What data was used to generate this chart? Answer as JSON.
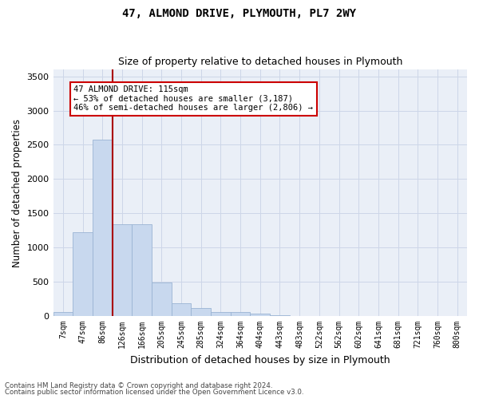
{
  "title": "47, ALMOND DRIVE, PLYMOUTH, PL7 2WY",
  "subtitle": "Size of property relative to detached houses in Plymouth",
  "xlabel": "Distribution of detached houses by size in Plymouth",
  "ylabel": "Number of detached properties",
  "bar_color": "#c8d8ee",
  "bar_edge_color": "#9ab4d4",
  "categories": [
    "7sqm",
    "47sqm",
    "86sqm",
    "126sqm",
    "166sqm",
    "205sqm",
    "245sqm",
    "285sqm",
    "324sqm",
    "364sqm",
    "404sqm",
    "443sqm",
    "483sqm",
    "522sqm",
    "562sqm",
    "602sqm",
    "641sqm",
    "681sqm",
    "721sqm",
    "760sqm",
    "800sqm"
  ],
  "values": [
    60,
    1220,
    2580,
    1340,
    1340,
    490,
    190,
    120,
    55,
    55,
    30,
    10,
    0,
    0,
    0,
    0,
    0,
    0,
    0,
    0,
    0
  ],
  "ylim": [
    0,
    3600
  ],
  "yticks": [
    0,
    500,
    1000,
    1500,
    2000,
    2500,
    3000,
    3500
  ],
  "property_line_x": 2.5,
  "annotation_title": "47 ALMOND DRIVE: 115sqm",
  "annotation_line1": "← 53% of detached houses are smaller (3,187)",
  "annotation_line2": "46% of semi-detached houses are larger (2,806) →",
  "annotation_box_color": "#ffffff",
  "annotation_box_edge": "#cc0000",
  "vline_color": "#aa0000",
  "grid_color": "#cdd6e8",
  "bg_color": "#eaeff7",
  "footer1": "Contains HM Land Registry data © Crown copyright and database right 2024.",
  "footer2": "Contains public sector information licensed under the Open Government Licence v3.0."
}
